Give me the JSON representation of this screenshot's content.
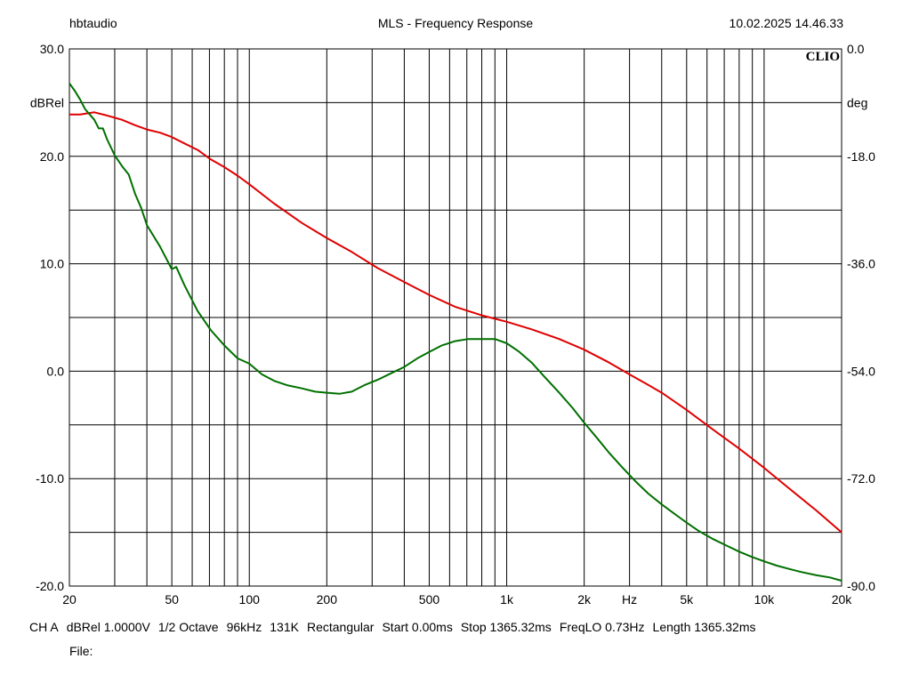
{
  "header": {
    "left": "hbtaudio",
    "center": "MLS - Frequency Response",
    "right": "10.02.2025 14.46.33",
    "brand": "CLIO"
  },
  "footer": {
    "items": [
      "CH A",
      "dBRel 1.0000V",
      "1/2 Octave",
      "96kHz",
      "131K",
      "Rectangular",
      "Start 0.00ms",
      "Stop 1365.32ms",
      "FreqLO 0.73Hz",
      "Length 1365.32ms"
    ],
    "file_label": "File:"
  },
  "chart_data": {
    "type": "line",
    "xscale": "log",
    "xlim": [
      20,
      20000
    ],
    "ylim": [
      -20,
      30
    ],
    "ylim_right": [
      -90,
      0
    ],
    "ylabel": "dBRel",
    "ylabel_right": "deg",
    "xunit": "Hz",
    "x_tick_labels": [
      {
        "value": 20,
        "label": "20"
      },
      {
        "value": 50,
        "label": "50"
      },
      {
        "value": 100,
        "label": "100"
      },
      {
        "value": 200,
        "label": "200"
      },
      {
        "value": 500,
        "label": "500"
      },
      {
        "value": 1000,
        "label": "1k"
      },
      {
        "value": 2000,
        "label": "2k"
      },
      {
        "value": 5000,
        "label": "5k"
      },
      {
        "value": 10000,
        "label": "10k"
      },
      {
        "value": 20000,
        "label": "20k"
      }
    ],
    "y_tick_labels": [
      "30.0",
      "20.0",
      "10.0",
      "0.0",
      "-10.0",
      "-20.0"
    ],
    "y_tick_labels_right": [
      "0.0",
      "-18.0",
      "-36.0",
      "-54.0",
      "-72.0",
      "-90.0"
    ],
    "grid": true,
    "colors": {
      "red_series": "#e00000",
      "green_series": "#007000"
    },
    "series": [
      {
        "color": "#e00000",
        "x": [
          20,
          22,
          25,
          28,
          32,
          36,
          40,
          45,
          50,
          56,
          63,
          71,
          80,
          90,
          100,
          125,
          160,
          200,
          250,
          315,
          400,
          500,
          630,
          800,
          1000,
          1250,
          1600,
          2000,
          2500,
          3000,
          3500,
          4000,
          5000,
          6300,
          8000,
          10000,
          12500,
          16000,
          20000
        ],
        "y": [
          23.9,
          23.9,
          24.1,
          23.8,
          23.4,
          22.9,
          22.5,
          22.2,
          21.8,
          21.2,
          20.6,
          19.7,
          19.0,
          18.2,
          17.4,
          15.6,
          13.8,
          12.4,
          11.1,
          9.6,
          8.3,
          7.1,
          6.0,
          5.2,
          4.6,
          3.9,
          3.0,
          2.0,
          0.8,
          -0.3,
          -1.2,
          -2.0,
          -3.6,
          -5.4,
          -7.2,
          -9.0,
          -10.9,
          -13.0,
          -15.0
        ]
      },
      {
        "color": "#007000",
        "x": [
          20,
          21,
          22,
          23,
          25,
          26,
          27,
          28,
          30,
          32,
          34,
          36,
          38,
          40,
          45,
          50,
          52,
          56,
          63,
          71,
          80,
          90,
          100,
          112,
          125,
          140,
          160,
          180,
          200,
          224,
          250,
          280,
          315,
          355,
          400,
          450,
          500,
          560,
          630,
          710,
          800,
          900,
          1000,
          1120,
          1250,
          1400,
          1600,
          1800,
          2000,
          2240,
          2500,
          2800,
          3150,
          3550,
          4000,
          4500,
          5000,
          5600,
          6300,
          7100,
          8000,
          9000,
          10000,
          11200,
          12500,
          14000,
          16000,
          18000,
          20000
        ],
        "y": [
          26.8,
          26.1,
          25.3,
          24.4,
          23.4,
          22.6,
          22.6,
          21.6,
          20.1,
          19.1,
          18.3,
          16.5,
          15.2,
          13.6,
          11.6,
          9.5,
          9.7,
          8.0,
          5.6,
          3.8,
          2.4,
          1.2,
          0.7,
          -0.3,
          -0.9,
          -1.3,
          -1.6,
          -1.9,
          -2.0,
          -2.1,
          -1.9,
          -1.3,
          -0.8,
          -0.2,
          0.4,
          1.2,
          1.8,
          2.4,
          2.8,
          3.0,
          3.0,
          3.0,
          2.6,
          1.8,
          0.8,
          -0.5,
          -2.0,
          -3.4,
          -4.8,
          -6.2,
          -7.6,
          -8.9,
          -10.2,
          -11.4,
          -12.4,
          -13.3,
          -14.1,
          -14.9,
          -15.6,
          -16.2,
          -16.8,
          -17.3,
          -17.7,
          -18.1,
          -18.4,
          -18.7,
          -19.0,
          -19.2,
          -19.5
        ]
      }
    ]
  }
}
